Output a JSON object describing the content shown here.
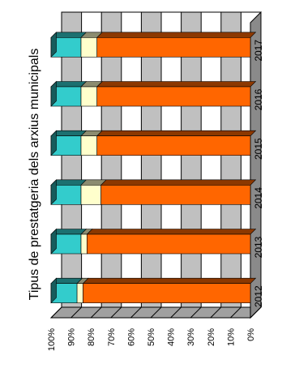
{
  "chart_data": {
    "type": "bar",
    "orientation": "horizontal-stacked-100",
    "title": "Tipus de prestatgeria dels arxius municipals",
    "categories": [
      "2012",
      "2013",
      "2014",
      "2015",
      "2016",
      "2017"
    ],
    "series": [
      {
        "name": "",
        "color": "#ff6600",
        "values": [
          84,
          82,
          75,
          77,
          77,
          77
        ]
      },
      {
        "name": "",
        "color": "#ffffcc",
        "values": [
          3,
          3,
          10,
          8,
          8,
          8
        ]
      },
      {
        "name": "",
        "color": "#33cccc",
        "values": [
          13,
          15,
          15,
          15,
          15,
          15
        ]
      }
    ],
    "ticks": [
      "0%",
      "10%",
      "20%",
      "30%",
      "40%",
      "50%",
      "60%",
      "70%",
      "80%",
      "90%",
      "100%"
    ],
    "xlim": [
      0,
      100
    ],
    "grid": true,
    "legend": "none",
    "colors": {
      "wall": "#c0c0c0",
      "wall_alt": "#ffffff",
      "floor": "#a0a0a0",
      "grid": "#000000"
    }
  }
}
